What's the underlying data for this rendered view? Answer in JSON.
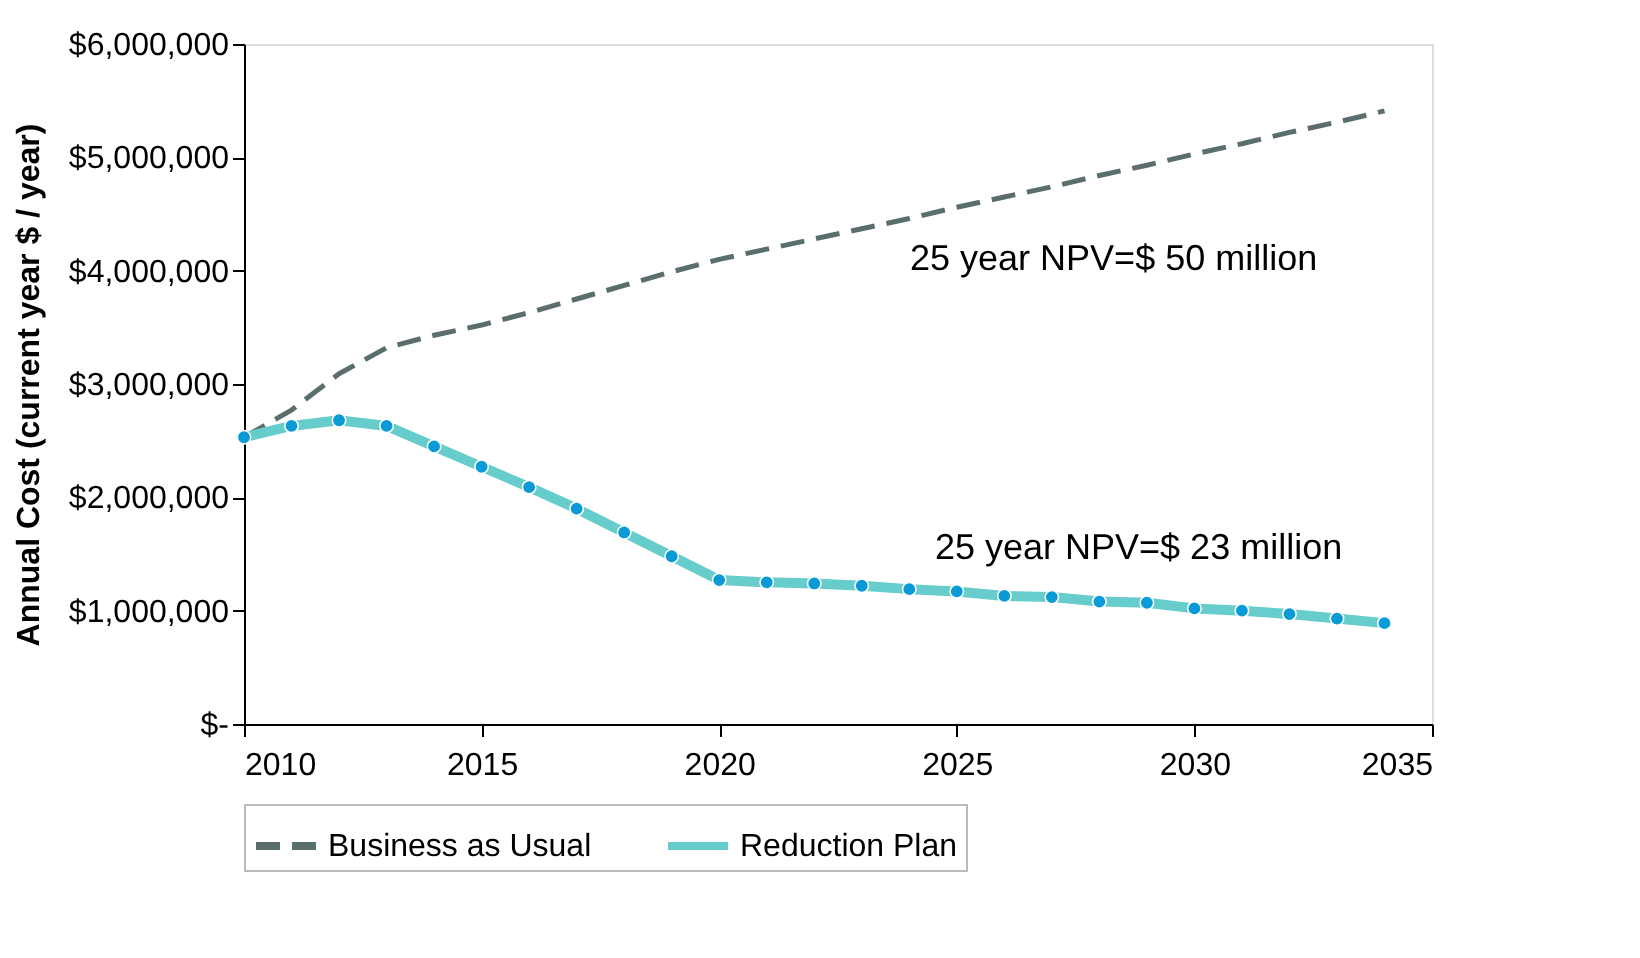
{
  "chart_data": {
    "type": "line",
    "ylabel": "Annual Cost (current year $ / year)",
    "x": [
      2010,
      2011,
      2012,
      2013,
      2014,
      2015,
      2016,
      2017,
      2018,
      2019,
      2020,
      2021,
      2022,
      2023,
      2024,
      2025,
      2026,
      2027,
      2028,
      2029,
      2030,
      2031,
      2032,
      2033,
      2034
    ],
    "series": [
      {
        "name": "Business as Usual",
        "color": "#5b6e6e",
        "line_style": "dashed",
        "marker": "none",
        "values": [
          2530000,
          2770000,
          3090000,
          3320000,
          3430000,
          3520000,
          3630000,
          3750000,
          3870000,
          3990000,
          4100000,
          4190000,
          4280000,
          4370000,
          4460000,
          4560000,
          4650000,
          4740000,
          4840000,
          4930000,
          5030000,
          5120000,
          5220000,
          5310000,
          5410000
        ]
      },
      {
        "name": "Reduction Plan",
        "color": "#66cccc",
        "line_style": "solid",
        "marker": "circle",
        "values": [
          2530000,
          2630000,
          2680000,
          2630000,
          2450000,
          2270000,
          2090000,
          1900000,
          1690000,
          1480000,
          1270000,
          1250000,
          1240000,
          1220000,
          1190000,
          1170000,
          1130000,
          1120000,
          1080000,
          1070000,
          1020000,
          1000000,
          970000,
          930000,
          890000
        ]
      }
    ],
    "xlim": [
      2010,
      2035
    ],
    "xticks": [
      2010,
      2015,
      2020,
      2025,
      2030,
      2035
    ],
    "ylim": [
      0,
      6000000
    ],
    "yticks": [
      {
        "value": 0,
        "label": "$-"
      },
      {
        "value": 1000000,
        "label": "$1,000,000"
      },
      {
        "value": 2000000,
        "label": "$2,000,000"
      },
      {
        "value": 3000000,
        "label": "$3,000,000"
      },
      {
        "value": 4000000,
        "label": "$4,000,000"
      },
      {
        "value": 5000000,
        "label": "$5,000,000"
      },
      {
        "value": 6000000,
        "label": "$6,000,000"
      }
    ],
    "annotations": [
      "25 year NPV=$ 50 million",
      "25 year NPV=$ 23 million"
    ],
    "grid": false,
    "legend": "bottom"
  }
}
